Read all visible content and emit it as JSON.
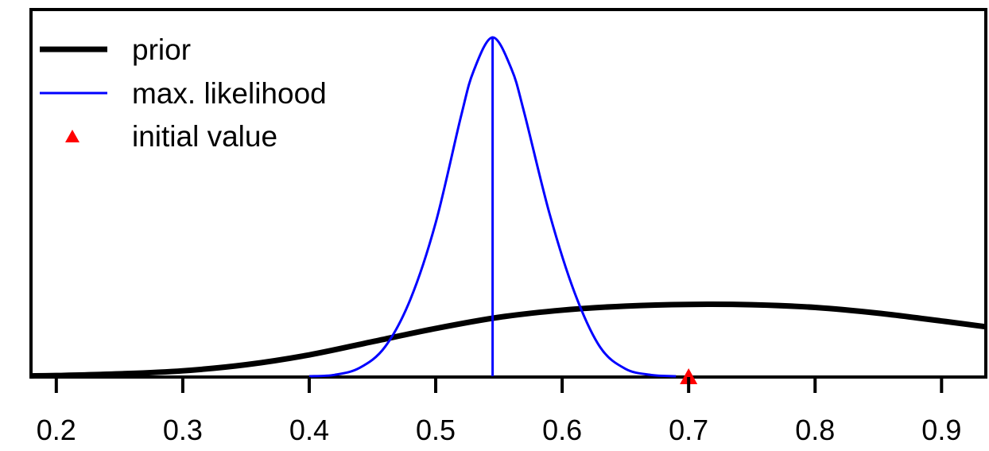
{
  "chart_data": {
    "type": "line",
    "title": "",
    "xlabel": "",
    "ylabel": "",
    "xlim": [
      0.18,
      0.935
    ],
    "ylim": [
      0,
      1
    ],
    "x_ticks": [
      0.2,
      0.3,
      0.4,
      0.5,
      0.6,
      0.7,
      0.8,
      0.9
    ],
    "x_tick_labels": [
      "0.2",
      "0.3",
      "0.4",
      "0.5",
      "0.6",
      "0.7",
      "0.8",
      "0.9"
    ],
    "y_axis_visible": false,
    "grid": false,
    "legend_position": "top-left",
    "colors": {
      "prior": "#000000",
      "max_likelihood": "#0000ff",
      "initial_value": "#ff0000"
    },
    "series": [
      {
        "name": "prior",
        "kind": "curve",
        "color": "#000000",
        "x": [
          0.18,
          0.2,
          0.25,
          0.3,
          0.35,
          0.4,
          0.45,
          0.5,
          0.55,
          0.6,
          0.65,
          0.7,
          0.75,
          0.8,
          0.85,
          0.9,
          0.935
        ],
        "y": [
          0.001,
          0.002,
          0.007,
          0.016,
          0.034,
          0.063,
          0.102,
          0.141,
          0.174,
          0.195,
          0.207,
          0.212,
          0.211,
          0.203,
          0.186,
          0.163,
          0.146
        ]
      },
      {
        "name": "max. likelihood",
        "kind": "curve",
        "color": "#0000ff",
        "x": [
          0.4,
          0.42,
          0.44,
          0.46,
          0.48,
          0.5,
          0.52,
          0.53,
          0.545,
          0.56,
          0.57,
          0.59,
          0.61,
          0.63,
          0.65,
          0.67,
          0.69
        ],
        "y": [
          0.0,
          0.004,
          0.025,
          0.087,
          0.227,
          0.453,
          0.767,
          0.901,
          1.0,
          0.906,
          0.778,
          0.48,
          0.245,
          0.086,
          0.022,
          0.004,
          0.0
        ]
      },
      {
        "name": "max. likelihood estimate",
        "kind": "vline",
        "color": "#0000ff",
        "x": 0.545,
        "y": 1.0
      },
      {
        "name": "initial value",
        "kind": "marker",
        "color": "#ff0000",
        "x": 0.7,
        "y": 0.0
      }
    ],
    "legend": [
      {
        "label": "prior",
        "symbol": "thick-line",
        "color": "#000000"
      },
      {
        "label": "max. likelihood",
        "symbol": "thin-line",
        "color": "#0000ff"
      },
      {
        "label": "initial value",
        "symbol": "triangle-icon",
        "color": "#ff0000"
      }
    ]
  }
}
